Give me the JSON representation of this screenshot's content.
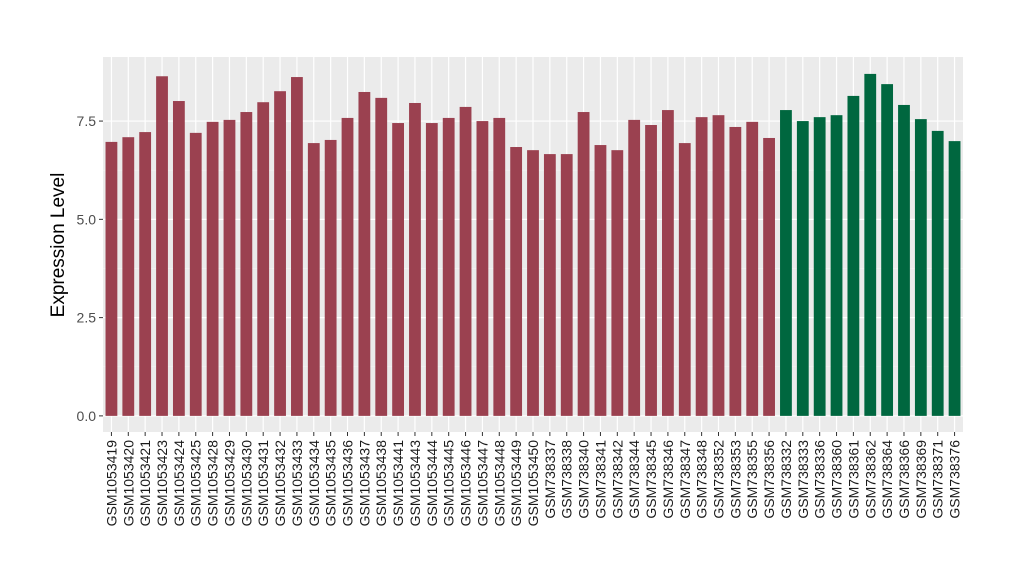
{
  "chart_data": {
    "type": "bar",
    "title": "",
    "xlabel": "",
    "ylabel": "Expression Level",
    "ylim": [
      -0.41,
      9.13
    ],
    "yticks": [
      0,
      2.5,
      5,
      7.5
    ],
    "ytick_labels": [
      "0.0",
      "2.5",
      "5.0",
      "7.5"
    ],
    "grid": true,
    "background": "#EBEBEB",
    "group_colors": [
      "#9B4150",
      "#00673F"
    ],
    "categories": [
      "GSM1053419",
      "GSM1053420",
      "GSM1053421",
      "GSM1053423",
      "GSM1053424",
      "GSM1053425",
      "GSM1053428",
      "GSM1053429",
      "GSM1053430",
      "GSM1053431",
      "GSM1053432",
      "GSM1053433",
      "GSM1053434",
      "GSM1053435",
      "GSM1053436",
      "GSM1053437",
      "GSM1053438",
      "GSM1053441",
      "GSM1053443",
      "GSM1053444",
      "GSM1053445",
      "GSM1053446",
      "GSM1053447",
      "GSM1053448",
      "GSM1053449",
      "GSM1053450",
      "GSM738337",
      "GSM738338",
      "GSM738340",
      "GSM738341",
      "GSM738342",
      "GSM738344",
      "GSM738345",
      "GSM738346",
      "GSM738347",
      "GSM738348",
      "GSM738352",
      "GSM738353",
      "GSM738355",
      "GSM738356",
      "GSM738332",
      "GSM738333",
      "GSM738336",
      "GSM738360",
      "GSM738361",
      "GSM738362",
      "GSM738364",
      "GSM738366",
      "GSM738369",
      "GSM738371",
      "GSM738376"
    ],
    "values": [
      6.97,
      7.09,
      7.22,
      8.64,
      8.01,
      7.2,
      7.48,
      7.53,
      7.73,
      7.98,
      8.26,
      8.62,
      6.94,
      7.02,
      7.58,
      8.24,
      8.09,
      7.45,
      7.96,
      7.45,
      7.58,
      7.86,
      7.5,
      7.58,
      6.84,
      6.76,
      6.66,
      6.66,
      7.73,
      6.89,
      6.76,
      7.53,
      7.4,
      7.78,
      6.94,
      7.6,
      7.65,
      7.35,
      7.48,
      7.07,
      7.78,
      7.5,
      7.6,
      7.65,
      8.14,
      8.7,
      8.44,
      7.91,
      7.55,
      7.25,
      6.99
    ],
    "groups": [
      0,
      0,
      0,
      0,
      0,
      0,
      0,
      0,
      0,
      0,
      0,
      0,
      0,
      0,
      0,
      0,
      0,
      0,
      0,
      0,
      0,
      0,
      0,
      0,
      0,
      0,
      0,
      0,
      0,
      0,
      0,
      0,
      0,
      0,
      0,
      0,
      0,
      0,
      0,
      0,
      1,
      1,
      1,
      1,
      1,
      1,
      1,
      1,
      1,
      1,
      1
    ]
  }
}
